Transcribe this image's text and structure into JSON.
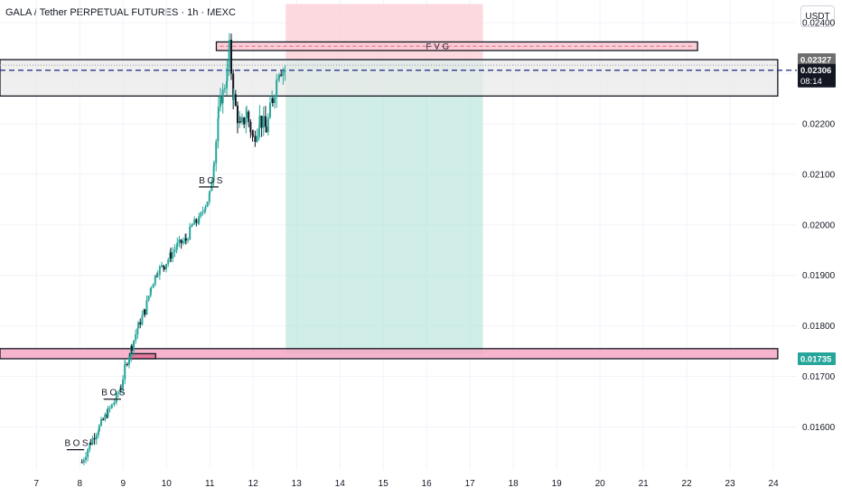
{
  "header": {
    "title": "GALA / Tether PERPETUAL FUTURES · 1h · MEXC",
    "currency": "USDT"
  },
  "colors": {
    "up": "#26a69a",
    "down": "#131722",
    "fvg_fill": "#f9c9d2",
    "zone_fill": "#f5a3c0",
    "resistance_fill": "#e9e9e9",
    "current_line": "#1a237e",
    "target_fill": "#b7e4da",
    "stop_fill": "#fbd0d6"
  },
  "labels": {
    "fvg": "FVG",
    "bos": [
      "BOS",
      "BOS",
      "BOS"
    ],
    "price_badges": [
      {
        "price": 0.02327,
        "text": "0.02327",
        "bg": "#6f6f6f",
        "fg": "#ffffff"
      },
      {
        "price": 0.02306,
        "text": "0.02306",
        "bg": "#131722",
        "fg": "#ffffff",
        "sub": "08:14"
      },
      {
        "price": 0.01735,
        "text": "0.01735",
        "bg": "#26a69a",
        "fg": "#ffffff"
      }
    ]
  },
  "chart_data": {
    "type": "candlestick",
    "title": "GALA / Tether PERPETUAL FUTURES · 1h · MEXC",
    "y_ticks": [
      "0.02400",
      "0.02300",
      "0.02200",
      "0.02100",
      "0.02000",
      "0.01900",
      "0.01800",
      "0.01700",
      "0.01600"
    ],
    "y_tick_values": [
      0.024,
      0.023,
      0.022,
      0.021,
      0.02,
      0.019,
      0.018,
      0.017,
      0.016
    ],
    "ylim": [
      0.01515,
      0.02445
    ],
    "x_ticks": [
      "7",
      "8",
      "9",
      "10",
      "11",
      "12",
      "13",
      "14",
      "15",
      "16",
      "17",
      "18",
      "19",
      "20",
      "21",
      "22",
      "23",
      "24"
    ],
    "x_tick_days": [
      7,
      8,
      9,
      10,
      11,
      12,
      13,
      14,
      15,
      16,
      17,
      18,
      19,
      20,
      21,
      22,
      23,
      24
    ],
    "xlim": [
      6.16,
      24.54
    ],
    "series_path": [
      [
        8.05,
        0.0153
      ],
      [
        8.25,
        0.0157
      ],
      [
        8.45,
        0.016
      ],
      [
        8.65,
        0.0163
      ],
      [
        8.8,
        0.0165
      ],
      [
        8.95,
        0.0168
      ],
      [
        9.05,
        0.0172
      ],
      [
        9.2,
        0.0176
      ],
      [
        9.35,
        0.018
      ],
      [
        9.5,
        0.0183
      ],
      [
        9.65,
        0.0188
      ],
      [
        9.8,
        0.0191
      ],
      [
        9.95,
        0.0192
      ],
      [
        10.1,
        0.0194
      ],
      [
        10.25,
        0.0196
      ],
      [
        10.45,
        0.0197
      ],
      [
        10.6,
        0.02
      ],
      [
        10.75,
        0.0201
      ],
      [
        10.9,
        0.0204
      ],
      [
        11.0,
        0.0206
      ],
      [
        11.1,
        0.0213
      ],
      [
        11.2,
        0.0222
      ],
      [
        11.3,
        0.0226
      ],
      [
        11.4,
        0.023
      ],
      [
        11.45,
        0.0235
      ],
      [
        11.55,
        0.0225
      ],
      [
        11.7,
        0.0219
      ],
      [
        11.85,
        0.0222
      ],
      [
        12.0,
        0.0217
      ],
      [
        12.15,
        0.0221
      ],
      [
        12.3,
        0.0219
      ],
      [
        12.45,
        0.0225
      ],
      [
        12.6,
        0.0231
      ],
      [
        12.75,
        0.02306
      ]
    ],
    "zones": {
      "fvg": {
        "from_day": 11.15,
        "to_day": 22.25,
        "top": 0.02362,
        "bottom": 0.02345
      },
      "resistance": {
        "from_day": 6.16,
        "to_day": 24.1,
        "top": 0.02327,
        "bottom": 0.02255,
        "mid": 0.02316
      },
      "demand": {
        "from_day": 6.16,
        "to_day": 24.1,
        "top": 0.01755,
        "bottom": 0.01735
      },
      "demand_small": {
        "from_day": 9.15,
        "to_day": 9.75,
        "top": 0.01745,
        "bottom": 0.01735
      },
      "stop": {
        "from_day": 12.75,
        "to_day": 17.3,
        "top": 0.02437,
        "bottom": 0.02327
      },
      "target": {
        "from_day": 12.75,
        "to_day": 17.3,
        "top": 0.02327,
        "bottom": 0.01745
      }
    },
    "current_price": 0.02306,
    "bos": [
      {
        "label": "BOS",
        "day": 11.0,
        "price": 0.02075,
        "from_day": 10.75,
        "to_day": 11.2
      },
      {
        "label": "BOS",
        "day": 8.75,
        "price": 0.01655,
        "from_day": 8.55,
        "to_day": 8.95
      },
      {
        "label": "BOS",
        "day": 7.9,
        "price": 0.01555,
        "from_day": 7.7,
        "to_day": 8.1
      }
    ]
  }
}
